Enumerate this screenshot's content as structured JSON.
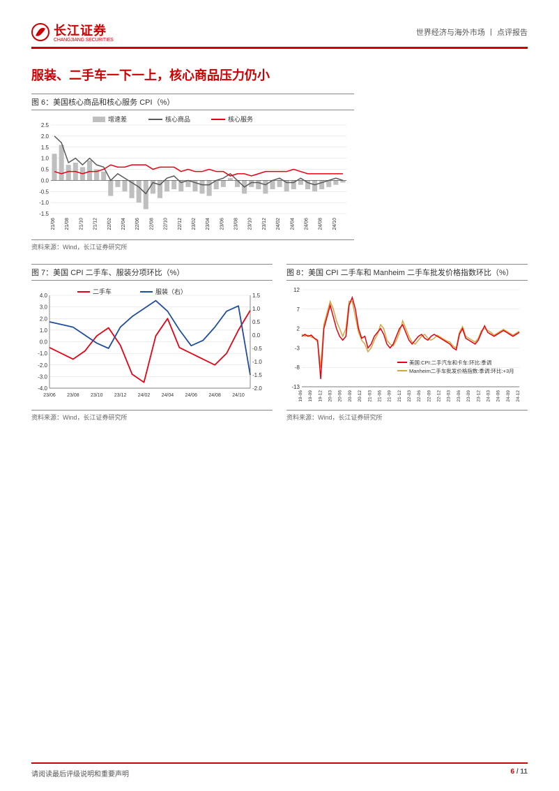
{
  "header": {
    "logo_cn": "长江证券",
    "logo_en": "CHANGJIANG SECURITIES",
    "right": "世界经济与海外市场 丨 点评报告"
  },
  "section_title": "服装、二手车一下一上，核心商品压力仍小",
  "chart6": {
    "title": "图 6：美国核心商品和核心服务 CPI（%）",
    "source": "资料来源：Wind，长江证券研究所",
    "legend": {
      "bar": "增速差",
      "line1": "核心商品",
      "line2": "核心服务"
    },
    "colors": {
      "bar": "#bfbfbf",
      "line1": "#595959",
      "line2": "#e60012",
      "grid": "#d9d9d9",
      "axis": "#595959",
      "text": "#333"
    },
    "ylim": [
      -1.5,
      2.5
    ],
    "ytick_step": 0.5,
    "xticks": [
      "21/06",
      "21/08",
      "21/10",
      "21/12",
      "22/02",
      "22/04",
      "22/06",
      "22/08",
      "22/10",
      "22/12",
      "23/02",
      "23/04",
      "23/06",
      "23/08",
      "23/10",
      "23/12",
      "24/02",
      "24/04",
      "24/06",
      "24/08",
      "24/10"
    ],
    "n": 42,
    "bar_values": [
      1.2,
      1.6,
      0.7,
      0.8,
      0.6,
      0.9,
      0.5,
      0.4,
      -0.7,
      -0.3,
      -0.5,
      -0.8,
      -1.0,
      -1.3,
      -0.6,
      -0.8,
      -0.5,
      -0.4,
      -0.5,
      -0.3,
      -0.5,
      -0.6,
      -0.7,
      -0.4,
      -0.3,
      0.1,
      -0.3,
      -0.6,
      -0.3,
      -0.4,
      -0.6,
      -0.4,
      -0.3,
      -0.5,
      -0.4,
      -0.2,
      -0.4,
      -0.5,
      -0.4,
      -0.3,
      -0.2,
      -0.1
    ],
    "line1_values": [
      2.0,
      1.7,
      0.8,
      1.0,
      0.7,
      1.0,
      0.7,
      0.6,
      0.0,
      0.3,
      0.1,
      -0.1,
      -0.3,
      -0.6,
      -0.1,
      -0.2,
      0.1,
      0.2,
      -0.1,
      0.0,
      -0.1,
      -0.2,
      -0.2,
      0.0,
      0.1,
      0.3,
      0.0,
      -0.3,
      -0.1,
      -0.1,
      -0.2,
      0.0,
      0.1,
      -0.1,
      -0.1,
      0.1,
      -0.1,
      -0.2,
      -0.1,
      0.0,
      0.1,
      0.0
    ],
    "line2_values": [
      0.4,
      0.3,
      0.4,
      0.4,
      0.3,
      0.4,
      0.4,
      0.5,
      0.7,
      0.6,
      0.6,
      0.7,
      0.7,
      0.7,
      0.5,
      0.6,
      0.6,
      0.6,
      0.4,
      0.5,
      0.4,
      0.4,
      0.5,
      0.4,
      0.4,
      0.2,
      0.3,
      0.3,
      0.2,
      0.3,
      0.4,
      0.4,
      0.4,
      0.4,
      0.5,
      0.4,
      0.3,
      0.3,
      0.3,
      0.3,
      0.3,
      0.3
    ]
  },
  "chart7": {
    "title": "图 7：美国 CPI 二手车、服装分项环比（%）",
    "source": "资料来源：Wind，长江证券研究所",
    "legend": {
      "line1": "二手车",
      "line2": "服装（右）"
    },
    "colors": {
      "line1": "#e60012",
      "line2": "#1f4e9c",
      "grid": "#d9d9d9",
      "axis": "#595959",
      "text": "#333"
    },
    "ylim_left": [
      -4.0,
      4.0
    ],
    "ytick_left": 1.0,
    "ylim_right": [
      -2.0,
      1.5
    ],
    "ytick_right": 0.5,
    "xticks": [
      "23/06",
      "23/08",
      "23/10",
      "23/12",
      "24/02",
      "24/04",
      "24/06",
      "24/08",
      "24/10"
    ],
    "n": 18,
    "line1_values": [
      -0.5,
      -1.0,
      -1.5,
      -0.8,
      0.5,
      1.2,
      -0.3,
      -2.8,
      -3.5,
      0.5,
      2.0,
      -0.5,
      -1.0,
      -1.5,
      -2.0,
      -1.0,
      1.0,
      2.7
    ],
    "line2_right": [
      0.5,
      0.4,
      0.3,
      0.0,
      -0.3,
      -0.5,
      0.3,
      0.7,
      1.0,
      1.3,
      0.9,
      0.2,
      -0.4,
      -0.2,
      0.3,
      0.9,
      1.1,
      -1.5
    ]
  },
  "chart8": {
    "title": "图 8：美国 CPI 二手车和 Manheim 二手车批发价格指数环比（%）",
    "source": "资料来源：Wind，长江证券研究所",
    "legend": {
      "line1": "美国:CPI:二手汽车和卡车:环比:季调",
      "line2": "Manheim二手车批发价格指数:季调:环比:+3月"
    },
    "colors": {
      "line1": "#e60012",
      "line2": "#d4a73e",
      "grid": "#d9d9d9",
      "axis": "#595959",
      "text": "#333"
    },
    "ylim": [
      -13,
      12
    ],
    "ytick_step": 5,
    "ytick_start": -13,
    "yticks": [
      -13,
      -8,
      -3,
      2,
      7,
      12
    ],
    "xticks": [
      "19-06",
      "19-09",
      "19-12",
      "20-03",
      "20-06",
      "20-09",
      "20-12",
      "21-03",
      "21-06",
      "21-09",
      "21-12",
      "22-03",
      "22-06",
      "22-09",
      "22-12",
      "23-03",
      "23-06",
      "23-09",
      "23-12",
      "24-03",
      "24-06",
      "24-09",
      "24-12"
    ],
    "n": 70,
    "line1_values": [
      0,
      0.5,
      0,
      0.3,
      -0.5,
      -1,
      -11,
      2,
      5,
      8,
      5,
      2,
      0,
      -1,
      0,
      8,
      10,
      7,
      2,
      -0.5,
      0,
      -3,
      -2,
      0,
      1,
      2,
      0.5,
      -2,
      -3,
      -2,
      0,
      2,
      3,
      1,
      -1,
      -2,
      -1,
      0,
      0.5,
      -0.5,
      -1,
      0,
      0.5,
      0,
      -0.5,
      -1,
      -1.5,
      -2,
      -3,
      -3.5,
      0.5,
      2,
      -0.5,
      -1,
      -1.5,
      -2,
      -1,
      1,
      2.7,
      1,
      0.5,
      0,
      0.5,
      1,
      1.5,
      1,
      0.5,
      0,
      0.5,
      1
    ],
    "line2_values": [
      0.5,
      0,
      0.3,
      -0.2,
      -0.5,
      -1.5,
      -8,
      3,
      6,
      9,
      7,
      4,
      2,
      0,
      2,
      9,
      9,
      5,
      1,
      -1,
      -2,
      -4,
      -3,
      -1,
      0.5,
      3,
      2,
      -1,
      -2,
      -2.5,
      -1,
      1,
      4,
      2,
      0,
      -1.5,
      -2,
      -1,
      0,
      0.5,
      -0.5,
      -1,
      -0.5,
      0.3,
      -0.2,
      -0.7,
      -1.2,
      -1.5,
      -2.5,
      -3,
      1,
      2.5,
      0,
      -0.5,
      -1,
      -1.5,
      -0.5,
      1.5,
      2,
      1.5,
      1,
      0.3,
      0.8,
      1.3,
      1.8,
      1.3,
      0.8,
      0.3,
      0.8,
      1.3
    ]
  },
  "footer": {
    "left": "请阅读最后评级说明和重要声明",
    "page_cur": "6",
    "page_sep": " / ",
    "page_total": "11"
  }
}
